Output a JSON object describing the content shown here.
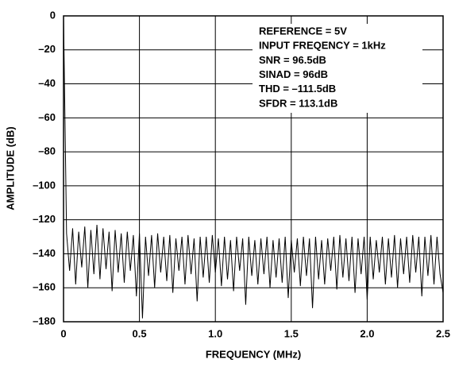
{
  "chart_data": {
    "type": "line",
    "x_label": "FREQUENCY (MHz)",
    "y_label": "AMPLITUDE (dB)",
    "annotations": [
      "REFERENCE = 5V",
      "INPUT FREQENCY = 1kHz",
      "SNR = 96.5dB",
      "SINAD = 96dB",
      "THD = –111.5dB",
      "SFDR = 113.1dB"
    ],
    "xlim": [
      0,
      2.5
    ],
    "ylim": [
      -180,
      0
    ],
    "xticks": [
      0,
      0.5,
      {
        "value": 1,
        "label": "1.0"
      },
      1.5,
      {
        "value": 2,
        "label": "2.0"
      },
      2.5
    ],
    "yticks": [
      0,
      {
        "value": -20,
        "label": "–20"
      },
      {
        "value": -40,
        "label": "–40"
      },
      {
        "value": -60,
        "label": "–60"
      },
      {
        "value": -80,
        "label": "–80"
      },
      {
        "value": -100,
        "label": "–100"
      },
      {
        "value": -120,
        "label": "–120"
      },
      {
        "value": -140,
        "label": "–140"
      },
      {
        "value": -160,
        "label": "–160"
      },
      {
        "value": -180,
        "label": "–180"
      }
    ],
    "grid": true,
    "color": "#000000",
    "x": [
      0,
      0.02,
      0.04,
      0.06,
      0.08,
      0.1,
      0.12,
      0.14,
      0.16,
      0.18,
      0.2,
      0.22,
      0.24,
      0.26,
      0.28,
      0.3,
      0.32,
      0.34,
      0.36,
      0.38,
      0.4,
      0.42,
      0.44,
      0.46,
      0.48,
      0.5,
      0.52,
      0.54,
      0.56,
      0.58,
      0.6,
      0.62,
      0.64,
      0.66,
      0.68,
      0.7,
      0.72,
      0.74,
      0.76,
      0.78,
      0.8,
      0.82,
      0.84,
      0.86,
      0.88,
      0.9,
      0.92,
      0.94,
      0.96,
      0.98,
      1,
      1.02,
      1.04,
      1.06,
      1.08,
      1.1,
      1.12,
      1.14,
      1.16,
      1.18,
      1.2,
      1.22,
      1.24,
      1.26,
      1.28,
      1.3,
      1.32,
      1.34,
      1.36,
      1.38,
      1.4,
      1.42,
      1.44,
      1.46,
      1.48,
      1.5,
      1.52,
      1.54,
      1.56,
      1.58,
      1.6,
      1.62,
      1.64,
      1.66,
      1.68,
      1.7,
      1.72,
      1.74,
      1.76,
      1.78,
      1.8,
      1.82,
      1.84,
      1.86,
      1.88,
      1.9,
      1.92,
      1.94,
      1.96,
      1.98,
      2,
      2.02,
      2.04,
      2.06,
      2.08,
      2.1,
      2.12,
      2.14,
      2.16,
      2.18,
      2.2,
      2.22,
      2.24,
      2.26,
      2.28,
      2.3,
      2.32,
      2.34,
      2.36,
      2.38,
      2.4,
      2.42,
      2.44,
      2.46,
      2.48,
      2.5
    ],
    "values": [
      0,
      -128,
      -150,
      -125,
      -158,
      -127,
      -148,
      -124,
      -160,
      -126,
      -152,
      -123,
      -155,
      -125,
      -149,
      -127,
      -162,
      -126,
      -151,
      -128,
      -157,
      -127,
      -150,
      -129,
      -165,
      -128,
      -178,
      -130,
      -153,
      -129,
      -160,
      -128,
      -151,
      -130,
      -156,
      -129,
      -163,
      -131,
      -150,
      -130,
      -158,
      -129,
      -152,
      -131,
      -168,
      -130,
      -154,
      -130,
      -157,
      -129,
      -151,
      -131,
      -159,
      -130,
      -155,
      -132,
      -162,
      -130,
      -150,
      -131,
      -170,
      -130,
      -153,
      -132,
      -158,
      -131,
      -152,
      -130,
      -160,
      -132,
      -154,
      -131,
      -157,
      -130,
      -166,
      -132,
      -151,
      -131,
      -159,
      -130,
      -153,
      -131,
      -172,
      -130,
      -155,
      -132,
      -158,
      -131,
      -150,
      -130,
      -161,
      -129,
      -154,
      -131,
      -156,
      -130,
      -163,
      -131,
      -152,
      -130,
      -167,
      -130,
      -155,
      -132,
      -151,
      -130,
      -158,
      -131,
      -154,
      -129,
      -160,
      -131,
      -152,
      -130,
      -157,
      -129,
      -151,
      -130,
      -165,
      -130,
      -153,
      -129,
      -158,
      -130,
      -152,
      -163
    ]
  }
}
